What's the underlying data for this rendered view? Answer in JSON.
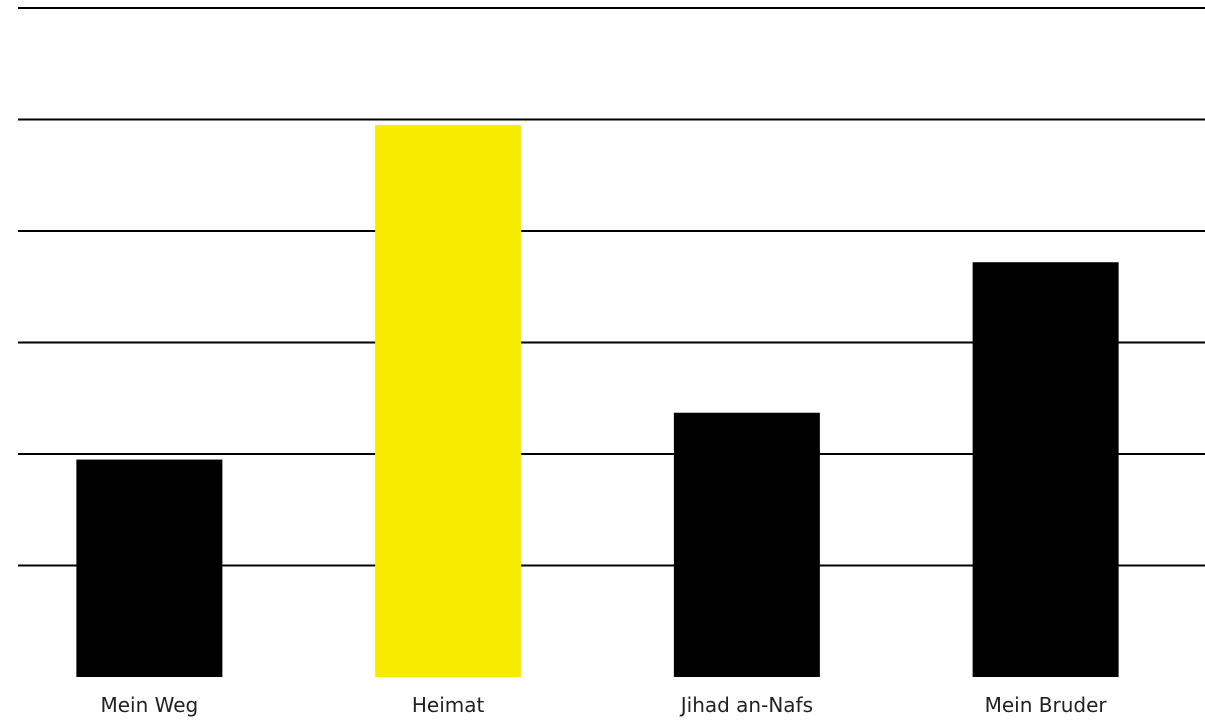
{
  "chart_data": {
    "type": "bar",
    "categories": [
      "Mein Weg",
      "Heimat",
      "Jihad an-Nafs",
      "Mein Bruder"
    ],
    "values": [
      2.95,
      5.95,
      3.37,
      4.72
    ],
    "ylim": [
      1,
      7
    ],
    "grid": true,
    "legend": "none",
    "bar_colors": [
      "#000000",
      "#f7eb00",
      "#000000",
      "#000000"
    ],
    "gridline_color": "#000000"
  }
}
